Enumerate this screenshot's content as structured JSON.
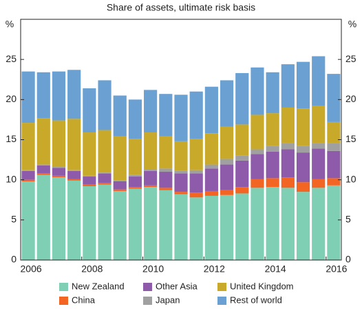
{
  "chart_data": {
    "type": "stacked_bar",
    "title": "Share of assets, ultimate risk basis",
    "y_unit": "%",
    "categories": [
      "2006",
      null,
      null,
      null,
      "2008",
      null,
      null,
      null,
      "2010",
      null,
      null,
      null,
      "2012",
      null,
      null,
      null,
      "2014",
      null,
      null,
      null,
      "2016"
    ],
    "series": [
      {
        "name": "New Zealand",
        "color": "#7fcfb5",
        "values": [
          9.8,
          10.6,
          10.3,
          9.9,
          9.2,
          9.4,
          8.6,
          8.9,
          9.1,
          8.7,
          8.2,
          7.8,
          8.0,
          8.1,
          8.3,
          9.0,
          9.1,
          9.0,
          8.5,
          9.0,
          9.3
        ]
      },
      {
        "name": "China",
        "color": "#f26522",
        "values": [
          0.2,
          0.2,
          0.2,
          0.2,
          0.2,
          0.2,
          0.2,
          0.2,
          0.2,
          0.3,
          0.3,
          0.6,
          0.6,
          0.6,
          0.8,
          1.1,
          1.1,
          1.3,
          1.2,
          1.1,
          0.9
        ]
      },
      {
        "name": "Other Asia",
        "color": "#8e5bab",
        "values": [
          1.1,
          1.0,
          1.0,
          1.0,
          1.0,
          1.2,
          1.0,
          1.3,
          1.8,
          2.0,
          2.3,
          2.4,
          2.8,
          3.2,
          3.3,
          3.1,
          3.3,
          3.5,
          3.7,
          3.8,
          3.4
        ]
      },
      {
        "name": "Japan",
        "color": "#a0a0a0",
        "values": [
          0.1,
          0.1,
          0.1,
          0.1,
          0.1,
          0.1,
          0.1,
          0.2,
          0.2,
          0.4,
          0.3,
          0.4,
          0.5,
          0.7,
          0.6,
          0.6,
          0.7,
          0.8,
          0.8,
          0.7,
          1.0
        ]
      },
      {
        "name": "United Kingdom",
        "color": "#c9a92a",
        "values": [
          5.9,
          5.8,
          5.8,
          6.4,
          5.4,
          5.3,
          5.5,
          4.5,
          4.6,
          4.0,
          3.7,
          3.9,
          3.9,
          4.0,
          3.9,
          4.3,
          4.1,
          4.4,
          4.7,
          4.6,
          2.6
        ]
      },
      {
        "name": "Rest of world",
        "color": "#6aa1d2",
        "values": [
          6.4,
          5.7,
          6.1,
          6.1,
          5.5,
          6.2,
          5.1,
          4.9,
          5.3,
          5.3,
          5.8,
          5.9,
          5.8,
          5.8,
          6.4,
          5.9,
          5.1,
          5.4,
          5.8,
          6.2,
          6.0
        ]
      }
    ],
    "ylim": [
      0,
      30
    ],
    "yticks": [
      0,
      5,
      10,
      15,
      20,
      25,
      30
    ]
  }
}
